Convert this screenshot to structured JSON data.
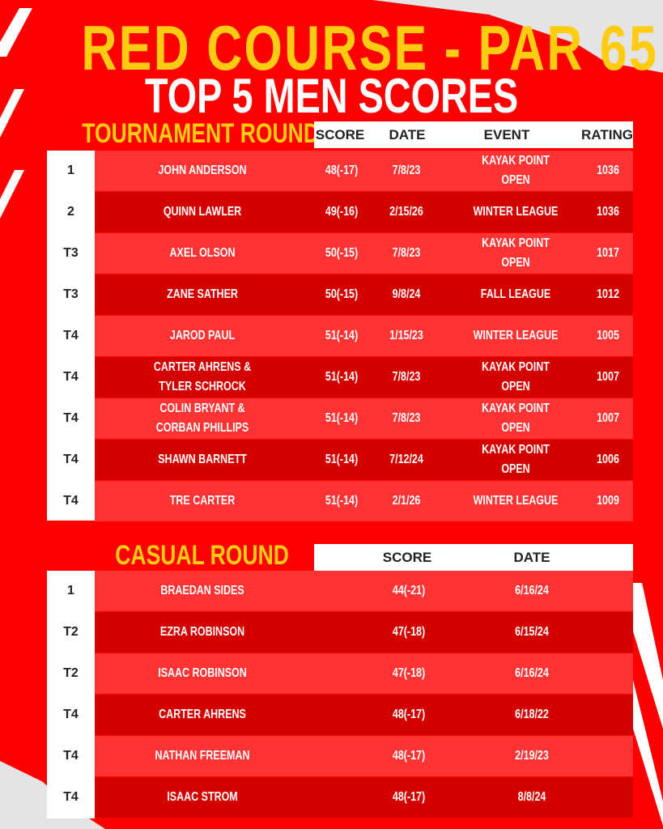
{
  "title": "RED COURSE - PAR 65",
  "subtitle": "TOP 5 MEN SCORES",
  "tournament": {
    "heading": "TOURNAMENT ROUND",
    "columns": [
      "SCORE",
      "DATE",
      "EVENT",
      "RATING"
    ],
    "rows": [
      {
        "rank": "1",
        "name": "JOHN ANDERSON",
        "score": "48(-17)",
        "date": "7/8/23",
        "event": "KAYAK POINT OPEN",
        "rating": "1036"
      },
      {
        "rank": "2",
        "name": "QUINN LAWLER",
        "score": "49(-16)",
        "date": "2/15/26",
        "event": "WINTER LEAGUE",
        "rating": "1036"
      },
      {
        "rank": "T3",
        "name": "AXEL OLSON",
        "score": "50(-15)",
        "date": "7/8/23",
        "event": "KAYAK POINT OPEN",
        "rating": "1017"
      },
      {
        "rank": "T3",
        "name": "ZANE SATHER",
        "score": "50(-15)",
        "date": "9/8/24",
        "event": "FALL LEAGUE",
        "rating": "1012"
      },
      {
        "rank": "T4",
        "name": "JAROD PAUL",
        "score": "51(-14)",
        "date": "1/15/23",
        "event": "WINTER LEAGUE",
        "rating": "1005"
      },
      {
        "rank": "T4",
        "name": "CARTER AHRENS &\nTYLER SCHROCK",
        "score": "51(-14)",
        "date": "7/8/23",
        "event": "KAYAK POINT OPEN",
        "rating": "1007"
      },
      {
        "rank": "T4",
        "name": "COLIN BRYANT &\nCORBAN PHILLIPS",
        "score": "51(-14)",
        "date": "7/8/23",
        "event": "KAYAK POINT OPEN",
        "rating": "1007"
      },
      {
        "rank": "T4",
        "name": "SHAWN BARNETT",
        "score": "51(-14)",
        "date": "7/12/24",
        "event": "KAYAK POINT OPEN",
        "rating": "1006"
      },
      {
        "rank": "T4",
        "name": "TRE CARTER",
        "score": "51(-14)",
        "date": "2/1/26",
        "event": "WINTER LEAGUE",
        "rating": "1009"
      }
    ]
  },
  "casual": {
    "heading": "CASUAL ROUND",
    "columns": [
      "SCORE",
      "DATE"
    ],
    "rows": [
      {
        "rank": "1",
        "name": "BRAEDAN SIDES",
        "score": "44(-21)",
        "date": "6/16/24"
      },
      {
        "rank": "T2",
        "name": "EZRA ROBINSON",
        "score": "47(-18)",
        "date": "6/15/24"
      },
      {
        "rank": "T2",
        "name": "ISAAC ROBINSON",
        "score": "47(-18)",
        "date": "6/16/24"
      },
      {
        "rank": "T4",
        "name": "CARTER AHRENS",
        "score": "48(-17)",
        "date": "6/18/22"
      },
      {
        "rank": "T4",
        "name": "NATHAN FREEMAN",
        "score": "48(-17)",
        "date": "2/19/23"
      },
      {
        "rank": "T4",
        "name": "ISAAC STROM",
        "score": "48(-17)",
        "date": "8/8/24"
      }
    ]
  },
  "colors": {
    "background": "#ff0000",
    "row_light": "#ff3333",
    "row_dark": "#d40000",
    "title": "#ffcc11"
  }
}
